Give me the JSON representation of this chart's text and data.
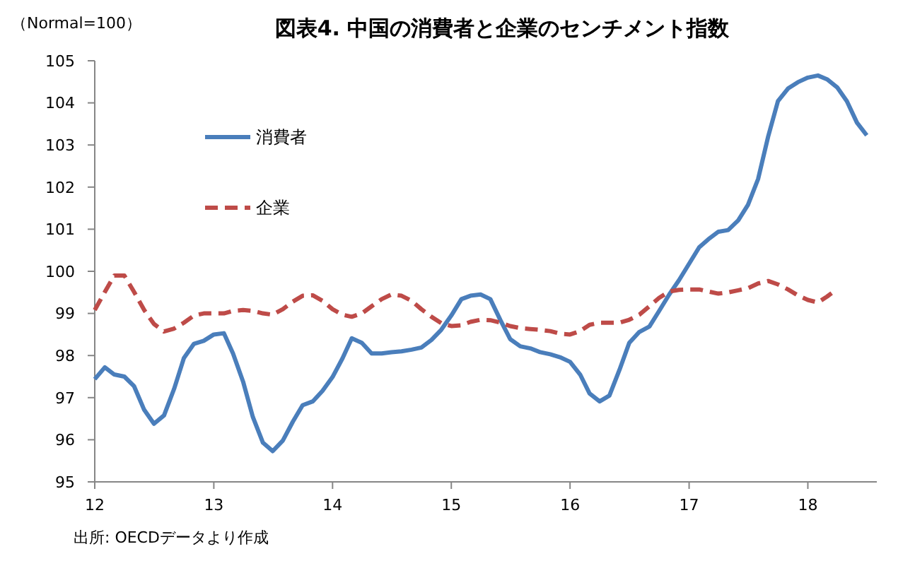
{
  "chart_data": {
    "type": "line",
    "title": "図表4. 中国の消費者と企業のセンチメント指数",
    "ylabel": "（Normal=100）",
    "annotations": [
      "出所: OECDデータより作成"
    ],
    "x": [
      "2012-01",
      "2012-02",
      "2012-03",
      "2012-04",
      "2012-05",
      "2012-06",
      "2012-07",
      "2012-08",
      "2012-09",
      "2012-10",
      "2012-11",
      "2012-12",
      "2013-01",
      "2013-02",
      "2013-03",
      "2013-04",
      "2013-05",
      "2013-06",
      "2013-07",
      "2013-08",
      "2013-09",
      "2013-10",
      "2013-11",
      "2013-12",
      "2014-01",
      "2014-02",
      "2014-03",
      "2014-04",
      "2014-05",
      "2014-06",
      "2014-07",
      "2014-08",
      "2014-09",
      "2014-10",
      "2014-11",
      "2014-12",
      "2015-01",
      "2015-02",
      "2015-03",
      "2015-04",
      "2015-05",
      "2015-06",
      "2015-07",
      "2015-08",
      "2015-09",
      "2015-10",
      "2015-11",
      "2015-12",
      "2016-01",
      "2016-02",
      "2016-03",
      "2016-04",
      "2016-05",
      "2016-06",
      "2016-07",
      "2016-08",
      "2016-09",
      "2016-10",
      "2016-11",
      "2016-12",
      "2017-01",
      "2017-02",
      "2017-03",
      "2017-04",
      "2017-05",
      "2017-06",
      "2017-07",
      "2017-08",
      "2017-09",
      "2017-10",
      "2017-11",
      "2017-12",
      "2018-01",
      "2018-02",
      "2018-03",
      "2018-04",
      "2018-05",
      "2018-06",
      "2018-07"
    ],
    "series": [
      {
        "name": "消費者",
        "color": "#4a7ebb",
        "line_style": "solid",
        "values": [
          97.44,
          97.72,
          97.55,
          97.5,
          97.27,
          96.71,
          96.38,
          96.58,
          97.21,
          97.94,
          98.28,
          98.35,
          98.5,
          98.53,
          98.05,
          97.38,
          96.54,
          95.93,
          95.73,
          95.98,
          96.43,
          96.82,
          96.91,
          97.16,
          97.49,
          97.94,
          98.41,
          98.3,
          98.05,
          98.05,
          98.08,
          98.1,
          98.14,
          98.19,
          98.37,
          98.61,
          98.95,
          99.34,
          99.42,
          99.45,
          99.34,
          98.84,
          98.39,
          98.22,
          98.17,
          98.08,
          98.03,
          97.96,
          97.85,
          97.55,
          97.1,
          96.91,
          97.05,
          97.66,
          98.3,
          98.56,
          98.69,
          99.06,
          99.45,
          99.79,
          100.18,
          100.57,
          100.76,
          100.94,
          100.98,
          101.21,
          101.58,
          102.19,
          103.2,
          104.04,
          104.34,
          104.49,
          104.6,
          104.65,
          104.56,
          104.37,
          104.04,
          103.53,
          103.23
        ]
      },
      {
        "name": "企業",
        "color": "#be4b48",
        "line_style": "dashed",
        "x": [
          "2012-01",
          "2012-02",
          "2012-03",
          "2012-04",
          "2012-05",
          "2012-06",
          "2012-07",
          "2012-08",
          "2012-09",
          "2012-10",
          "2012-11",
          "2012-12",
          "2013-01",
          "2013-02",
          "2013-03",
          "2013-04",
          "2013-05",
          "2013-06",
          "2013-07",
          "2013-08",
          "2013-09",
          "2013-10",
          "2013-11",
          "2013-12",
          "2014-01",
          "2014-02",
          "2014-03",
          "2014-04",
          "2014-05",
          "2014-06",
          "2014-07",
          "2014-08",
          "2014-09",
          "2014-10",
          "2014-11",
          "2014-12",
          "2015-01",
          "2015-02",
          "2015-03",
          "2015-04",
          "2015-05",
          "2015-06",
          "2015-07",
          "2015-08",
          "2015-09",
          "2015-10",
          "2015-11",
          "2015-12",
          "2016-01",
          "2016-02",
          "2016-03",
          "2016-04",
          "2016-05",
          "2016-06",
          "2016-07",
          "2016-08",
          "2016-09",
          "2016-10",
          "2016-11",
          "2016-12",
          "2017-01",
          "2017-02",
          "2017-03",
          "2017-04",
          "2017-05",
          "2017-06",
          "2017-07",
          "2017-08",
          "2017-09",
          "2017-10",
          "2017-11",
          "2017-12",
          "2018-01",
          "2018-02",
          "2018-03",
          "2018-04"
        ],
        "values": [
          99.08,
          99.51,
          99.9,
          99.9,
          99.51,
          99.08,
          98.75,
          98.57,
          98.64,
          98.78,
          98.95,
          99.0,
          99.0,
          99.0,
          99.06,
          99.08,
          99.06,
          99.0,
          98.97,
          99.1,
          99.28,
          99.42,
          99.43,
          99.3,
          99.1,
          98.97,
          98.92,
          99.0,
          99.17,
          99.34,
          99.45,
          99.42,
          99.3,
          99.1,
          98.92,
          98.77,
          98.7,
          98.72,
          98.8,
          98.85,
          98.84,
          98.78,
          98.7,
          98.65,
          98.63,
          98.61,
          98.58,
          98.52,
          98.5,
          98.58,
          98.73,
          98.78,
          98.78,
          98.78,
          98.85,
          98.97,
          99.17,
          99.37,
          99.52,
          99.56,
          99.57,
          99.57,
          99.52,
          99.47,
          99.5,
          99.55,
          99.6,
          99.71,
          99.77,
          99.69,
          99.57,
          99.43,
          99.32,
          99.26,
          99.4,
          99.58
        ]
      }
    ],
    "xlim": [
      "2012-01",
      "2018-08"
    ],
    "xticks": [
      {
        "value": "2012-01",
        "label": "12"
      },
      {
        "value": "2013-01",
        "label": "13"
      },
      {
        "value": "2014-01",
        "label": "14"
      },
      {
        "value": "2015-01",
        "label": "15"
      },
      {
        "value": "2016-01",
        "label": "16"
      },
      {
        "value": "2017-01",
        "label": "17"
      },
      {
        "value": "2018-01",
        "label": "18"
      }
    ],
    "ylim": [
      95,
      105
    ],
    "yticks": [
      95,
      96,
      97,
      98,
      99,
      100,
      101,
      102,
      103,
      104,
      105
    ],
    "grid": false,
    "legend": "top left",
    "marker": "none"
  }
}
